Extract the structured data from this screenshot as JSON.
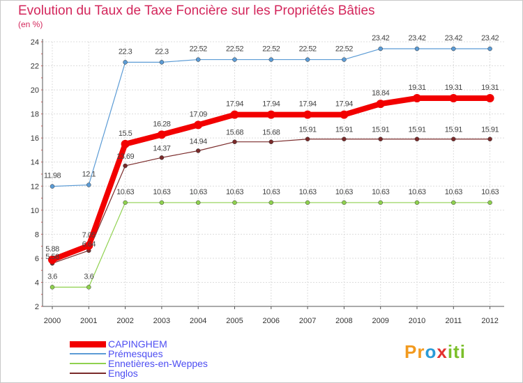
{
  "title": "Evolution du Taux de Taxe Foncière sur les Propriétés Bâties",
  "unit": "(en %)",
  "logo": "Proxiti",
  "chart_data": {
    "type": "line",
    "title": "Evolution du Taux de Taxe Foncière sur les Propriétés Bâties",
    "ylabel": "(en %)",
    "xlabel": "",
    "x": [
      "2000",
      "2001",
      "2002",
      "2003",
      "2004",
      "2005",
      "2006",
      "2007",
      "2008",
      "2009",
      "2010",
      "2011",
      "2012"
    ],
    "ylim": [
      2,
      24
    ],
    "yticks": [
      "2",
      "4",
      "6",
      "8",
      "10",
      "12",
      "14",
      "16",
      "18",
      "20",
      "22",
      "24"
    ],
    "grid": true,
    "series": [
      {
        "name": "Prémesques",
        "color": "#5b9bd5",
        "values": [
          11.98,
          12.1,
          22.3,
          22.3,
          22.52,
          22.52,
          22.52,
          22.52,
          22.52,
          23.42,
          23.42,
          23.42,
          23.42
        ],
        "labels": [
          "11.98",
          "12.1",
          "22.3",
          "22.3",
          "22.52",
          "22.52",
          "22.52",
          "22.52",
          "22.52",
          "23.42",
          "23.42",
          "23.42",
          "23.42"
        ]
      },
      {
        "name": "CAPINGHEM",
        "color": "#f20000",
        "values": [
          5.88,
          7.05,
          15.5,
          16.28,
          17.09,
          17.94,
          17.94,
          17.94,
          17.94,
          18.84,
          19.31,
          19.31,
          19.31
        ],
        "labels": [
          "5.88",
          "7.05",
          "15.5",
          "16.28",
          "17.09",
          "17.94",
          "17.94",
          "17.94",
          "17.94",
          "18.84",
          "19.31",
          "19.31",
          "19.31"
        ]
      },
      {
        "name": "Englos",
        "color": "#7a2a2a",
        "values": [
          5.58,
          6.64,
          13.69,
          14.37,
          14.94,
          15.68,
          15.68,
          15.91,
          15.91,
          15.91,
          15.91,
          15.91,
          15.91
        ],
        "labels": [
          "5.58",
          "6.64",
          "13.69",
          "14.37",
          "14.94",
          "15.68",
          "15.68",
          "15.91",
          "15.91",
          "15.91",
          "15.91",
          "15.91",
          "15.91"
        ]
      },
      {
        "name": "Ennetières-en-Weppes",
        "color": "#8fd14f",
        "values": [
          3.6,
          3.6,
          10.63,
          10.63,
          10.63,
          10.63,
          10.63,
          10.63,
          10.63,
          10.63,
          10.63,
          10.63,
          10.63
        ],
        "labels": [
          "3.6",
          "3.6",
          "10.63",
          "10.63",
          "10.63",
          "10.63",
          "10.63",
          "10.63",
          "10.63",
          "10.63",
          "10.63",
          "10.63",
          "10.63"
        ]
      }
    ],
    "legend": [
      {
        "name": "CAPINGHEM",
        "color": "#f20000"
      },
      {
        "name": "Prémesques",
        "color": "#5b9bd5"
      },
      {
        "name": "Ennetières-en-Weppes",
        "color": "#8fd14f"
      },
      {
        "name": "Englos",
        "color": "#7a2a2a"
      }
    ]
  }
}
